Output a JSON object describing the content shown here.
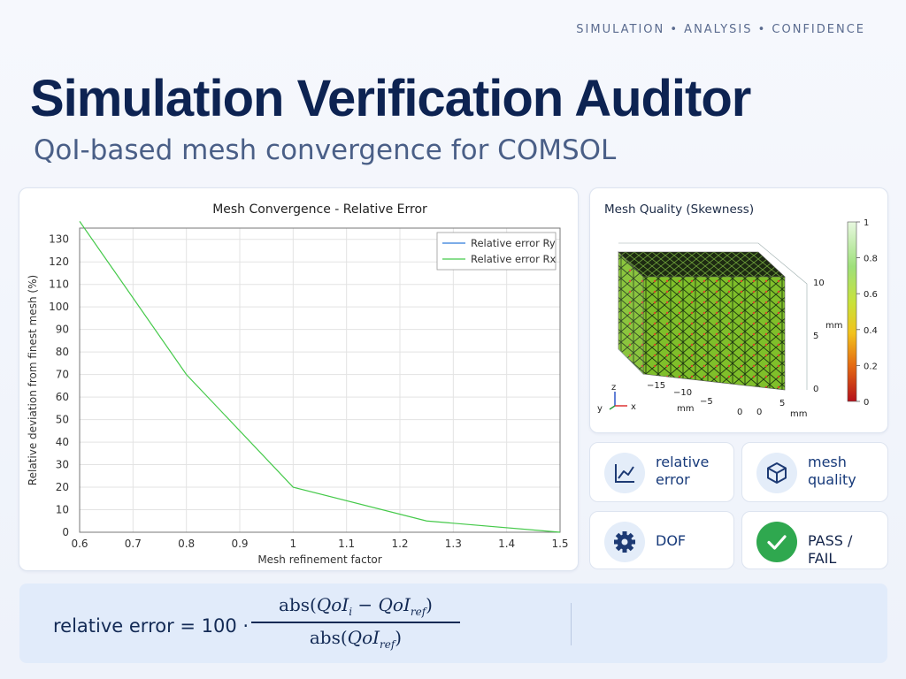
{
  "header": {
    "tagline": "SIMULATION  •  ANALYSIS  •  CONFIDENCE",
    "title": "Simulation Verification Auditor",
    "subtitle": "QoI-based mesh convergence for COMSOL"
  },
  "chart_data": {
    "type": "line",
    "title": "Mesh Convergence - Relative Error",
    "xlabel": "Mesh refinement factor",
    "ylabel": "Relative deviation from finest mesh (%)",
    "xlim": [
      0.6,
      1.5
    ],
    "ylim": [
      0,
      135
    ],
    "xticks": [
      "0.6",
      "0.7",
      "0.8",
      "0.9",
      "1",
      "1.1",
      "1.2",
      "1.3",
      "1.4",
      "1.5"
    ],
    "yticks": [
      "0",
      "10",
      "20",
      "30",
      "40",
      "50",
      "60",
      "70",
      "80",
      "90",
      "100",
      "110",
      "120",
      "130"
    ],
    "grid": true,
    "legend_position": "top-right",
    "series": [
      {
        "name": "Relative error Ry",
        "color": "#2f7ad9",
        "x": [],
        "y": []
      },
      {
        "name": "Relative error Rx",
        "color": "#45c94a",
        "x": [
          0.6,
          0.8,
          1.0,
          1.25,
          1.5
        ],
        "y": [
          138,
          70,
          20,
          5,
          0
        ]
      }
    ]
  },
  "mesh_panel": {
    "title": "Mesh Quality (Skewness)",
    "colorbar_ticks": [
      "1",
      "0.8",
      "0.6",
      "0.4",
      "0.2",
      "0"
    ],
    "x_ticks": [
      "−15",
      "−10",
      "−5",
      "0"
    ],
    "y_ticks": [
      "0",
      "5"
    ],
    "z_ticks": [
      "10",
      "5",
      "0"
    ],
    "axis_unit": "mm",
    "triad_labels": {
      "z": "z",
      "y": "y",
      "x": "x"
    }
  },
  "tiles": [
    {
      "label": "relative error",
      "icon": "line-chart-icon"
    },
    {
      "label": "mesh quality",
      "icon": "cube-icon"
    },
    {
      "label": "DOF",
      "icon": "gear-icon"
    },
    {
      "label": "PASS / FAIL",
      "icon": "check-icon"
    }
  ],
  "formula": {
    "lhs": "relative error = 100 ·",
    "numerator": "abs(QoI_i − QoI_ref)",
    "denominator": "abs(QoI_ref)"
  },
  "colors": {
    "accent": "#0d2352",
    "series_rx": "#45c94a",
    "series_ry": "#2f7ad9",
    "pass": "#2fa84f"
  }
}
